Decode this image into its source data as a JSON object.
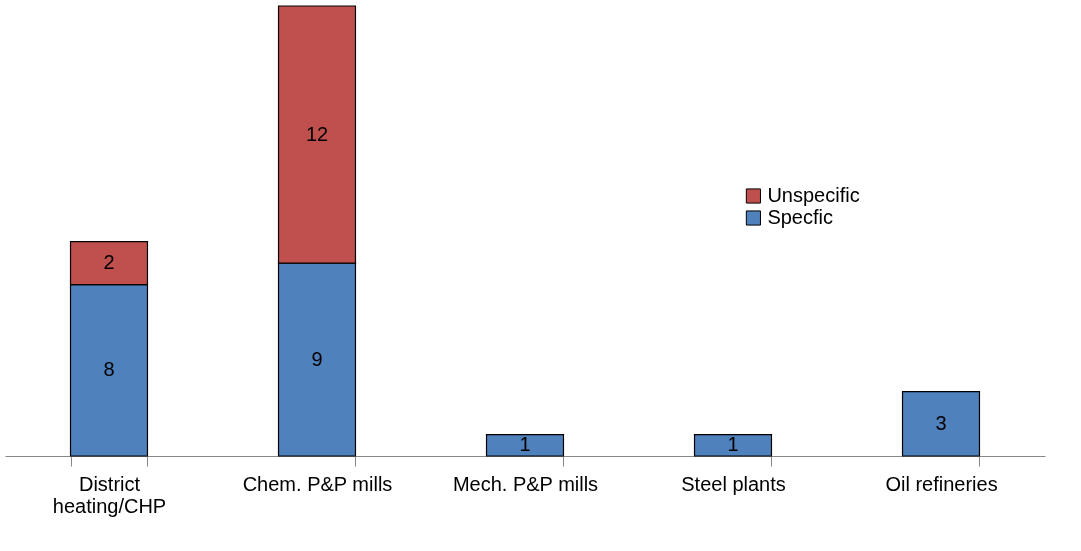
{
  "chart_data": {
    "type": "bar",
    "stacked": true,
    "data_labels": true,
    "legend": "right",
    "grid": false,
    "categories": [
      "District heating/CHP",
      "Chem. P&P mills",
      "Mech. P&P mills",
      "Steel plants",
      "Oil refineries"
    ],
    "series": [
      {
        "name": "Specfic",
        "color": "#4f81bd",
        "values": [
          8,
          9,
          1,
          1,
          3
        ]
      },
      {
        "name": "Unspecific",
        "color": "#c0504d",
        "values": [
          2,
          12,
          null,
          null,
          null
        ]
      }
    ]
  }
}
